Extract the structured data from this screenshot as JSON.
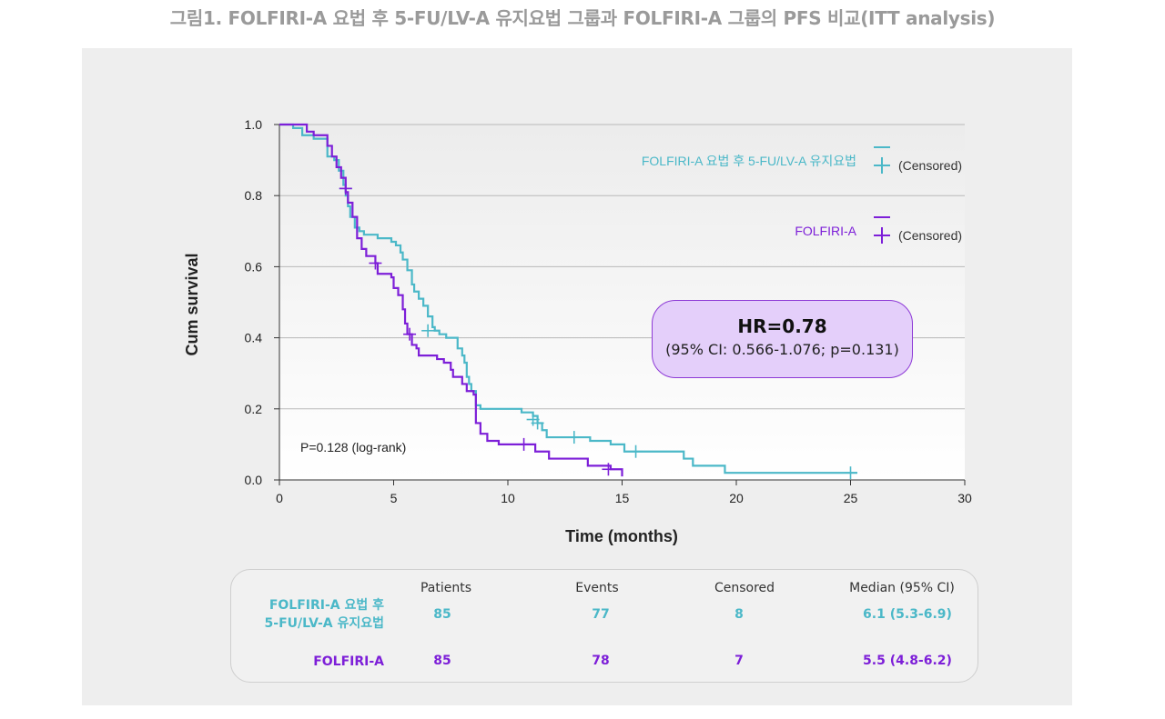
{
  "figure": {
    "title": "그림1. FOLFIRI-A 요법 후 5-FU/LV-A 유지요법 그룹과 FOLFIRI-A 그룹의 PFS 비교(ITT analysis)"
  },
  "colors": {
    "teal": "#4bb8c8",
    "purple": "#7d1fd8",
    "teal_text": "#4bb8c8",
    "purple_text": "#7d1fd8"
  },
  "chart_data": {
    "type": "line",
    "subtype": "kaplan-meier-step",
    "xlabel": "Time (months)",
    "ylabel": "Cum survival",
    "xlim": [
      0,
      30
    ],
    "ylim": [
      0,
      1.0
    ],
    "xticks": [
      "0",
      "5",
      "10",
      "15",
      "20",
      "25",
      "30"
    ],
    "yticks": [
      "0.0",
      "0.2",
      "0.4",
      "0.6",
      "0.8",
      "1.0"
    ],
    "grid": "horizontal",
    "legend_position": "top-right",
    "annotation": "P=0.128 (log-rank)",
    "censored_label": "(Censored)",
    "hr_title": "HR=0.78",
    "hr_detail": "(95% CI: 0.566-1.076; p=0.131)",
    "series": [
      {
        "name": "FOLFIRI-A 요법 후 5-FU/LV-A 유지요법",
        "color": "#4bb8c8",
        "points": [
          [
            0,
            1.0
          ],
          [
            0.6,
            0.99
          ],
          [
            1.0,
            0.97
          ],
          [
            1.5,
            0.96
          ],
          [
            2.1,
            0.91
          ],
          [
            2.4,
            0.9
          ],
          [
            2.6,
            0.87
          ],
          [
            2.8,
            0.83
          ],
          [
            2.9,
            0.8
          ],
          [
            3.0,
            0.77
          ],
          [
            3.1,
            0.74
          ],
          [
            3.3,
            0.71
          ],
          [
            3.5,
            0.7
          ],
          [
            3.7,
            0.69
          ],
          [
            4.1,
            0.69
          ],
          [
            4.3,
            0.68
          ],
          [
            4.6,
            0.68
          ],
          [
            4.9,
            0.67
          ],
          [
            5.1,
            0.66
          ],
          [
            5.3,
            0.64
          ],
          [
            5.4,
            0.62
          ],
          [
            5.6,
            0.59
          ],
          [
            5.8,
            0.55
          ],
          [
            5.9,
            0.53
          ],
          [
            6.1,
            0.51
          ],
          [
            6.3,
            0.49
          ],
          [
            6.5,
            0.46
          ],
          [
            6.7,
            0.43
          ],
          [
            6.8,
            0.42
          ],
          [
            7.0,
            0.41
          ],
          [
            7.3,
            0.4
          ],
          [
            7.8,
            0.37
          ],
          [
            8.0,
            0.35
          ],
          [
            8.1,
            0.33
          ],
          [
            8.2,
            0.29
          ],
          [
            8.3,
            0.27
          ],
          [
            8.4,
            0.25
          ],
          [
            8.6,
            0.21
          ],
          [
            8.8,
            0.2
          ],
          [
            10.3,
            0.2
          ],
          [
            10.6,
            0.19
          ],
          [
            11.1,
            0.18
          ],
          [
            11.3,
            0.16
          ],
          [
            11.5,
            0.14
          ],
          [
            11.7,
            0.12
          ],
          [
            13.3,
            0.12
          ],
          [
            13.6,
            0.11
          ],
          [
            14.5,
            0.1
          ],
          [
            15.1,
            0.08
          ],
          [
            17.0,
            0.08
          ],
          [
            17.7,
            0.06
          ],
          [
            17.7,
            0.06
          ],
          [
            17.8,
            0.06
          ],
          [
            18.1,
            0.04
          ],
          [
            19.5,
            0.04
          ],
          [
            19.5,
            0.02
          ],
          [
            25.3,
            0.02
          ]
        ],
        "censored": [
          [
            2.9,
            0.82
          ],
          [
            6.5,
            0.42
          ],
          [
            11.1,
            0.17
          ],
          [
            11.3,
            0.16
          ],
          [
            12.9,
            0.12
          ],
          [
            15.6,
            0.08
          ],
          [
            25.0,
            0.02
          ]
        ]
      },
      {
        "name": "FOLFIRI-A",
        "color": "#7d1fd8",
        "points": [
          [
            0,
            1.0
          ],
          [
            0.7,
            1.0
          ],
          [
            1.2,
            0.98
          ],
          [
            1.5,
            0.97
          ],
          [
            2.1,
            0.94
          ],
          [
            2.3,
            0.91
          ],
          [
            2.5,
            0.88
          ],
          [
            2.7,
            0.85
          ],
          [
            2.9,
            0.81
          ],
          [
            3.0,
            0.78
          ],
          [
            3.2,
            0.74
          ],
          [
            3.4,
            0.68
          ],
          [
            3.6,
            0.65
          ],
          [
            3.8,
            0.63
          ],
          [
            4.2,
            0.61
          ],
          [
            4.3,
            0.58
          ],
          [
            4.9,
            0.57
          ],
          [
            5.0,
            0.54
          ],
          [
            5.2,
            0.52
          ],
          [
            5.4,
            0.48
          ],
          [
            5.5,
            0.44
          ],
          [
            5.6,
            0.41
          ],
          [
            5.8,
            0.38
          ],
          [
            6.0,
            0.37
          ],
          [
            6.1,
            0.35
          ],
          [
            6.9,
            0.34
          ],
          [
            7.2,
            0.33
          ],
          [
            7.5,
            0.31
          ],
          [
            7.6,
            0.29
          ],
          [
            8.0,
            0.27
          ],
          [
            8.2,
            0.25
          ],
          [
            8.5,
            0.24
          ],
          [
            8.6,
            0.16
          ],
          [
            8.8,
            0.13
          ],
          [
            9.1,
            0.11
          ],
          [
            9.6,
            0.1
          ],
          [
            11.0,
            0.1
          ],
          [
            11.2,
            0.08
          ],
          [
            11.8,
            0.06
          ],
          [
            13.1,
            0.06
          ],
          [
            13.5,
            0.04
          ],
          [
            13.7,
            0.04
          ],
          [
            14.5,
            0.03
          ],
          [
            15.0,
            0.03
          ],
          [
            15.0,
            0.01
          ]
        ],
        "censored": [
          [
            2.9,
            0.82
          ],
          [
            4.2,
            0.61
          ],
          [
            5.7,
            0.41
          ],
          [
            10.7,
            0.1
          ],
          [
            14.4,
            0.03
          ]
        ]
      }
    ]
  },
  "stats_table": {
    "headers": [
      "Patients",
      "Events",
      "Censored",
      "Median (95% CI)"
    ],
    "rows": [
      {
        "label": "FOLFIRI-A 요법 후\n5-FU/LV-A 유지요법",
        "patients": "85",
        "events": "77",
        "censored": "8",
        "median": "6.1 (5.3-6.9)"
      },
      {
        "label": "FOLFIRI-A",
        "patients": "85",
        "events": "78",
        "censored": "7",
        "median": "5.5 (4.8-6.2)"
      }
    ]
  }
}
